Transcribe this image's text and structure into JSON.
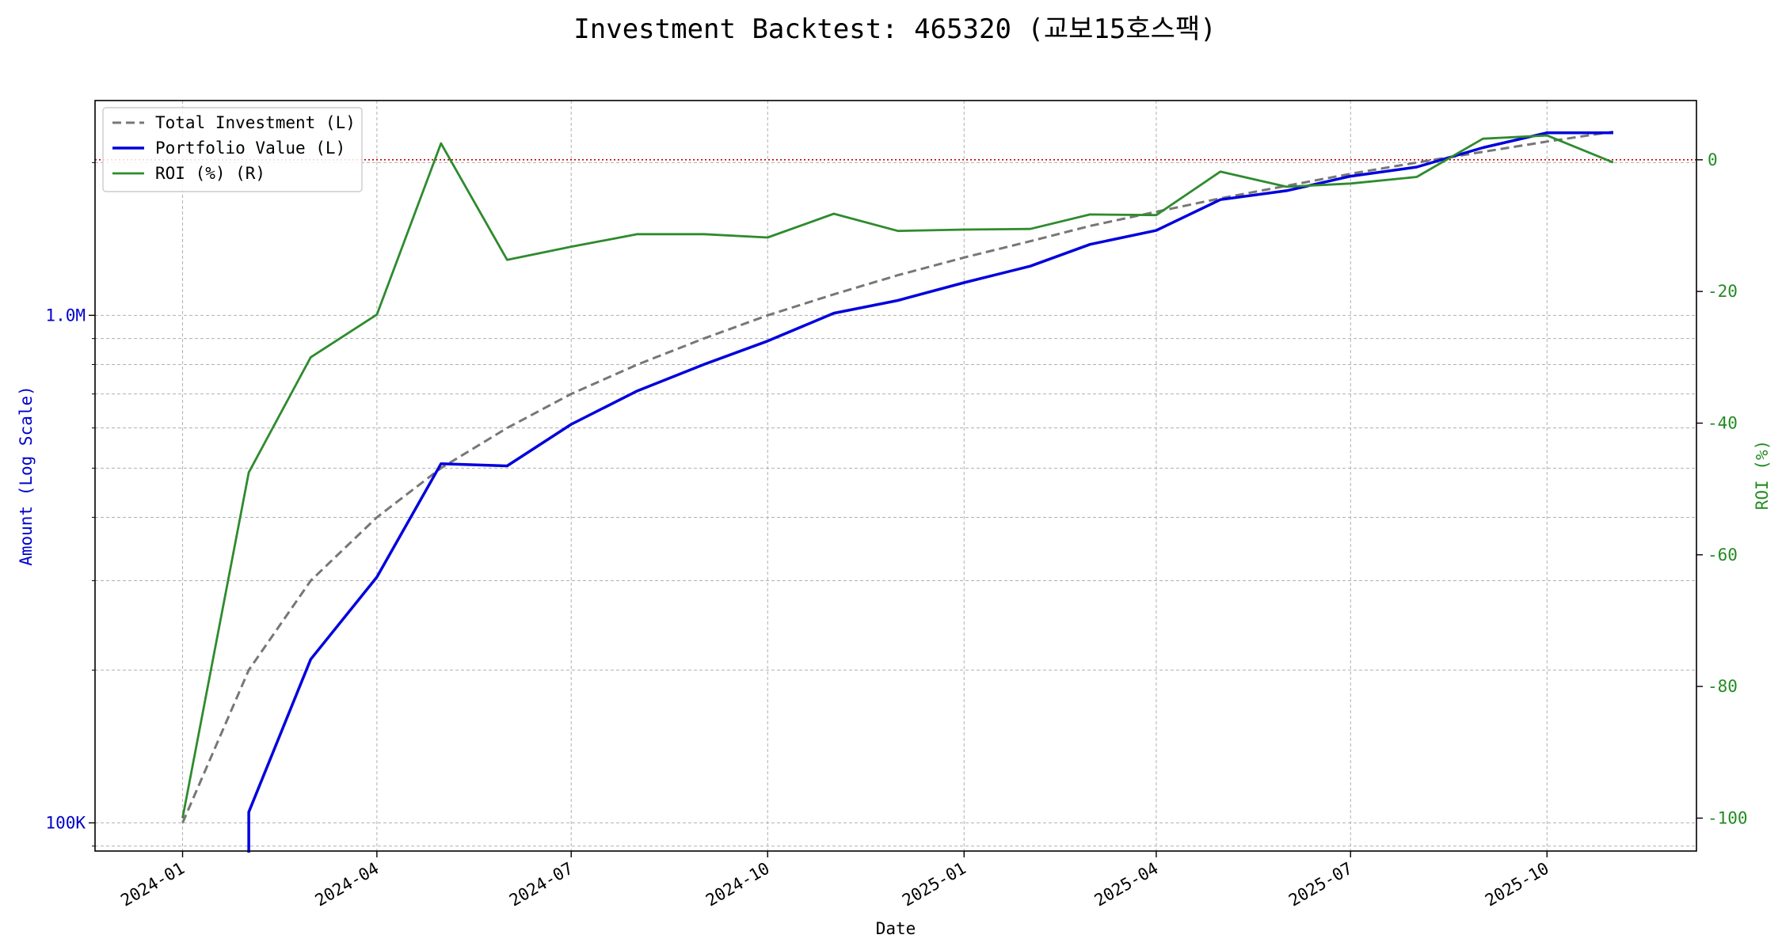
{
  "chart_data": {
    "type": "line",
    "title": "Investment Backtest: 465320 (교보15호스팩)",
    "xlabel": "Date",
    "ylabel_left": "Amount (Log Scale)",
    "ylabel_right": "ROI (%)",
    "left_axis_color": "#0000cc",
    "right_axis_color": "#228b22",
    "left_scale": "log",
    "left_ylim": [
      88000,
      2650000
    ],
    "right_ylim": [
      -105,
      9
    ],
    "x_tick_labels": [
      "2024-01",
      "2024-04",
      "2024-07",
      "2024-10",
      "2025-01",
      "2025-04",
      "2025-07",
      "2025-10"
    ],
    "x_ticks": [
      "2024-01-01",
      "2024-04-01",
      "2024-07-01",
      "2024-10-01",
      "2025-01-01",
      "2025-04-01",
      "2025-07-01",
      "2025-10-01"
    ],
    "x_range": [
      "2023-11-21",
      "2025-12-10"
    ],
    "left_tick_labels": [
      {
        "value": 100000,
        "label": "100K"
      },
      {
        "value": 1000000,
        "label": "1.0M"
      }
    ],
    "right_tick_values": [
      0,
      -20,
      -40,
      -60,
      -80,
      -100
    ],
    "reference_line": {
      "axis": "right",
      "value": 0,
      "color": "#cc0000",
      "style": "dotted"
    },
    "grid": true,
    "legend_position": "top-left",
    "dates": [
      "2024-01-01",
      "2024-02-01",
      "2024-03-01",
      "2024-04-01",
      "2024-05-01",
      "2024-06-01",
      "2024-07-01",
      "2024-08-01",
      "2024-09-01",
      "2024-10-01",
      "2024-11-01",
      "2024-12-01",
      "2025-01-01",
      "2025-02-01",
      "2025-03-01",
      "2025-04-01",
      "2025-05-01",
      "2025-06-01",
      "2025-07-01",
      "2025-08-01",
      "2025-09-01",
      "2025-10-01",
      "2025-11-01"
    ],
    "series": [
      {
        "name": "Total Investment (L)",
        "axis": "left",
        "color": "#777777",
        "style": "dashed",
        "values": [
          100000,
          200000,
          300000,
          400000,
          500000,
          600000,
          700000,
          800000,
          900000,
          1000000,
          1100000,
          1200000,
          1300000,
          1400000,
          1500000,
          1600000,
          1700000,
          1800000,
          1900000,
          2000000,
          2100000,
          2200000,
          2300000
        ]
      },
      {
        "name": "Portfolio Value (L)",
        "axis": "left",
        "color": "#0000dd",
        "style": "solid",
        "values": [
          null,
          105000,
          210000,
          305000,
          510000,
          505000,
          610000,
          710000,
          800000,
          890000,
          1010000,
          1070000,
          1160000,
          1250000,
          1380000,
          1470000,
          1690000,
          1760000,
          1880000,
          1960000,
          2140000,
          2290000,
          2290000
        ]
      },
      {
        "name": "ROI (%) (R)",
        "axis": "right",
        "color": "#2e8b2e",
        "style": "solid",
        "values": [
          -100,
          -47.5,
          -30,
          -23.5,
          2.5,
          -15.2,
          -13.2,
          -11.3,
          -11.3,
          -11.8,
          -8.2,
          -10.8,
          -10.6,
          -10.5,
          -8.3,
          -8.4,
          -1.8,
          -4.1,
          -3.6,
          -2.6,
          3.2,
          3.7,
          -0.4
        ]
      }
    ]
  }
}
